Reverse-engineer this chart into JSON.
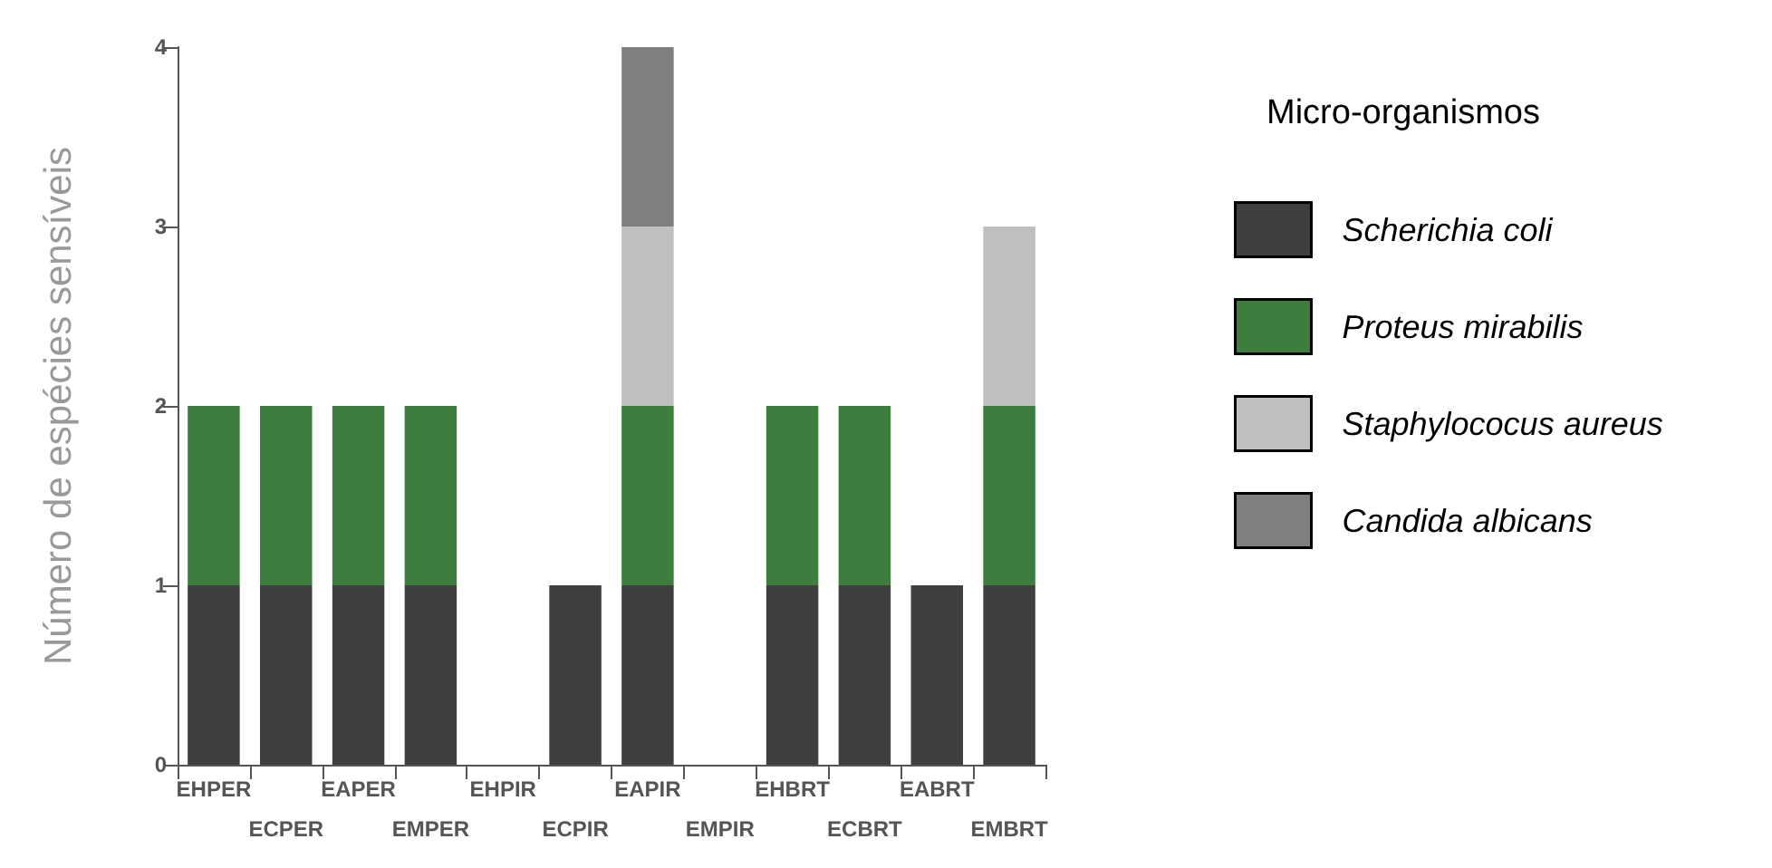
{
  "chart_data": {
    "type": "bar",
    "stacked": true,
    "ylabel": "Número de espécies sensíveis",
    "legend_title": "Micro-organismos",
    "legend": "right",
    "categories": [
      "EHPER",
      "ECPER",
      "EAPER",
      "EMPER",
      "EHPIR",
      "ECPIR",
      "EAPIR",
      "EMPIR",
      "EHBRT",
      "ECBRT",
      "EABRT",
      "EMBRT"
    ],
    "ylim": [
      0,
      4
    ],
    "yticks": [
      0,
      1,
      2,
      3,
      4
    ],
    "grid": false,
    "series": [
      {
        "name": "Scherichia coli",
        "color": "#3f3f3f",
        "values": [
          1,
          1,
          1,
          1,
          0,
          1,
          1,
          0,
          1,
          1,
          1,
          1
        ]
      },
      {
        "name": "Proteus mirabilis",
        "color": "#3e7d3e",
        "values": [
          1,
          1,
          1,
          1,
          0,
          0,
          1,
          0,
          1,
          1,
          0,
          1
        ]
      },
      {
        "name": "Staphylococus aureus",
        "color": "#bfbfbf",
        "values": [
          0,
          0,
          0,
          0,
          0,
          0,
          1,
          0,
          0,
          0,
          0,
          1
        ]
      },
      {
        "name": "Candida albicans",
        "color": "#7f7f7f",
        "values": [
          0,
          0,
          0,
          0,
          0,
          0,
          1,
          0,
          0,
          0,
          0,
          0
        ]
      }
    ]
  }
}
